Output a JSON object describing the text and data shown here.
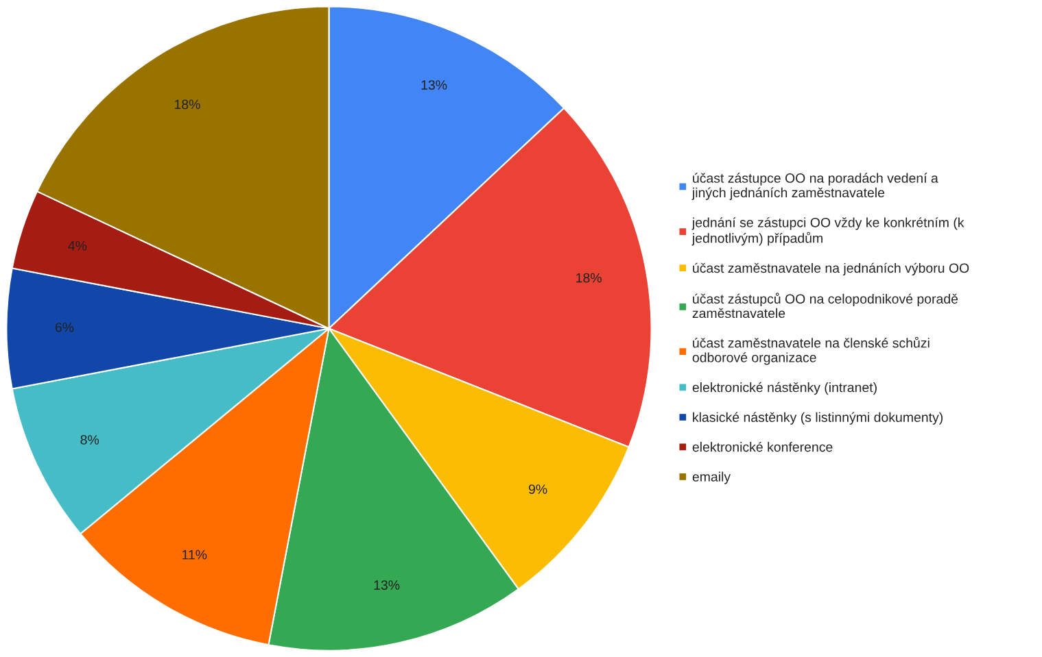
{
  "chart_data": {
    "type": "pie",
    "categories": [
      "účast zástupce OO na poradách vedení a\njiných jednáních zaměstnavatele",
      "jednání se zástupci OO vždy ke konkrétním (k\njednotlivým) případům",
      "účast zaměstnavatele na jednáních výboru OO",
      "účast zástupců OO na celopodnikové poradě\nzaměstnavatele",
      "účast zaměstnavatele na členské schůzi\nodborové organizace",
      "elektronické nástěnky (intranet)",
      "klasické nástěnky (s listinnými dokumenty)",
      "elektronické konference",
      "emaily"
    ],
    "values": [
      13,
      18,
      9,
      13,
      11,
      8,
      6,
      4,
      18
    ],
    "colors": [
      "#4285f4",
      "#ea4335",
      "#fbbc04",
      "#34a853",
      "#ff6d01",
      "#46bdc6",
      "#1147a8",
      "#a51c12",
      "#997300"
    ],
    "value_labels": [
      "13%",
      "18%",
      "9%",
      "13%",
      "11%",
      "8%",
      "6%",
      "4%",
      "18%"
    ],
    "legend": "right"
  }
}
